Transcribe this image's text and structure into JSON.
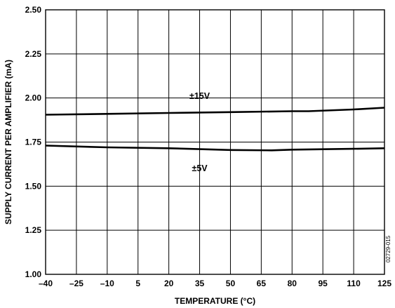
{
  "chart_data": {
    "type": "line",
    "xlabel": "TEMPERATURE (°C)",
    "ylabel": "SUPPLY CURRENT PER AMPLIFIER (mA)",
    "xlim": [
      -40,
      125
    ],
    "ylim": [
      1.0,
      2.5
    ],
    "xticks": [
      -40,
      -25,
      -10,
      5,
      20,
      35,
      50,
      65,
      80,
      95,
      110,
      125
    ],
    "xtick_labels": [
      "–40",
      "–25",
      "–10",
      "5",
      "20",
      "35",
      "50",
      "65",
      "80",
      "95",
      "110",
      "125"
    ],
    "yticks": [
      1.0,
      1.25,
      1.5,
      1.75,
      2.0,
      2.25,
      2.5
    ],
    "ytick_labels": [
      "1.00",
      "1.25",
      "1.50",
      "1.75",
      "2.00",
      "2.25",
      "2.50"
    ],
    "grid": true,
    "legend": "none",
    "series": [
      {
        "name": "±15V",
        "x": [
          -40,
          -10,
          20,
          50,
          80,
          88,
          110,
          125
        ],
        "y": [
          1.905,
          1.91,
          1.915,
          1.92,
          1.925,
          1.925,
          1.935,
          1.945
        ]
      },
      {
        "name": "±5V",
        "x": [
          -40,
          -10,
          20,
          50,
          70,
          80,
          110,
          125
        ],
        "y": [
          1.73,
          1.72,
          1.715,
          1.705,
          1.703,
          1.707,
          1.712,
          1.715
        ]
      }
    ],
    "annotation": "02729-015"
  }
}
